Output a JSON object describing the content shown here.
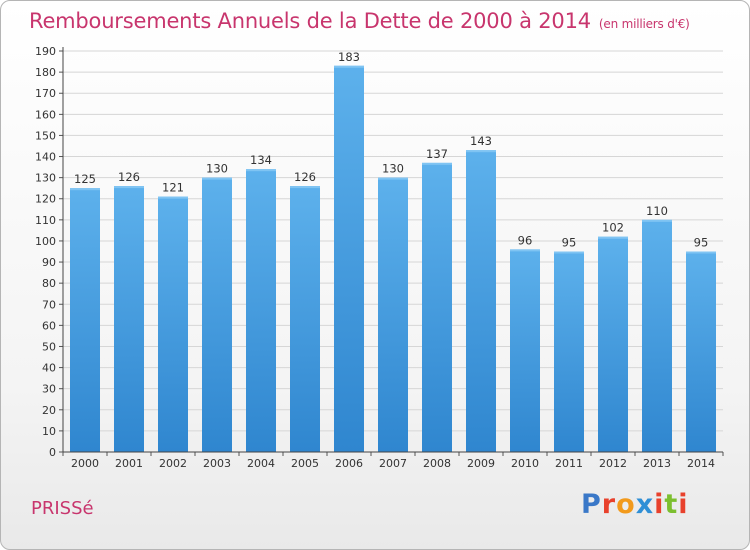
{
  "chart_data": {
    "type": "bar",
    "title": "Remboursements Annuels de la Dette de 2000 à 2014",
    "unit_note": "(en milliers d'€)",
    "categories": [
      "2000",
      "2001",
      "2002",
      "2003",
      "2004",
      "2005",
      "2006",
      "2007",
      "2008",
      "2009",
      "2010",
      "2011",
      "2012",
      "2013",
      "2014"
    ],
    "values": [
      125,
      126,
      121,
      130,
      134,
      126,
      183,
      130,
      137,
      143,
      96,
      95,
      102,
      110,
      95
    ],
    "ylim": [
      0,
      190
    ],
    "ytick_step": 10,
    "grid": true,
    "xlabel": "",
    "ylabel": "",
    "bar_color": "#4a9ee0"
  },
  "commune": "PRISSé",
  "logo": {
    "letters": [
      "P",
      "r",
      "o",
      "x",
      "i",
      "t",
      "i"
    ],
    "colors": [
      "#3a78c8",
      "#e8412c",
      "#f29a1c",
      "#2f8fd6",
      "#e8412c",
      "#7cbf2f",
      "#e8412c"
    ]
  }
}
